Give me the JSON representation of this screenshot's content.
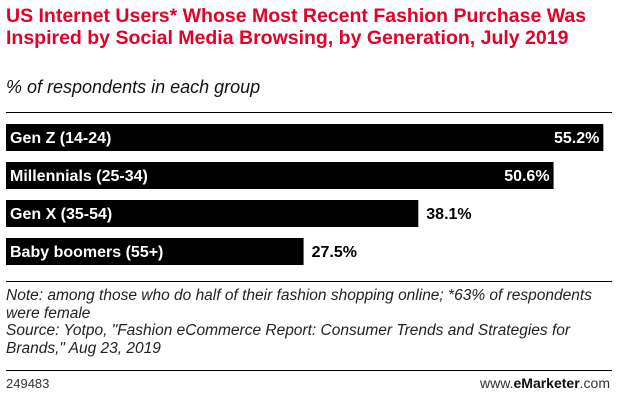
{
  "chart_data": {
    "type": "bar",
    "orientation": "horizontal",
    "title": "US Internet Users* Whose Most Recent Fashion Purchase Was Inspired by Social Media Browsing, by Generation, July 2019",
    "subtitle": "% of respondents in each group",
    "categories": [
      "Gen Z (14-24)",
      "Millennials (25-34)",
      "Gen X (35-54)",
      "Baby boomers (55+)"
    ],
    "values": [
      55.2,
      50.6,
      38.1,
      27.5
    ],
    "value_labels": [
      "55.2%",
      "50.6%",
      "38.1%",
      "27.5%"
    ],
    "xlim": [
      0,
      56
    ],
    "bar_color": "#000000",
    "label_color": "#ffffff",
    "grid": false,
    "legend": "none"
  },
  "note": {
    "line1": "Note: among those who do half of their fashion shopping online; *63% of respondents were female",
    "line2": "Source: Yotpo, \"Fashion eCommerce Report: Consumer Trends and Strategies for Brands,\" Aug 23, 2019"
  },
  "footer": {
    "chart_id": "249483",
    "brand_prefix": "www.",
    "brand_name": "eMarketer",
    "brand_suffix": ".com"
  }
}
